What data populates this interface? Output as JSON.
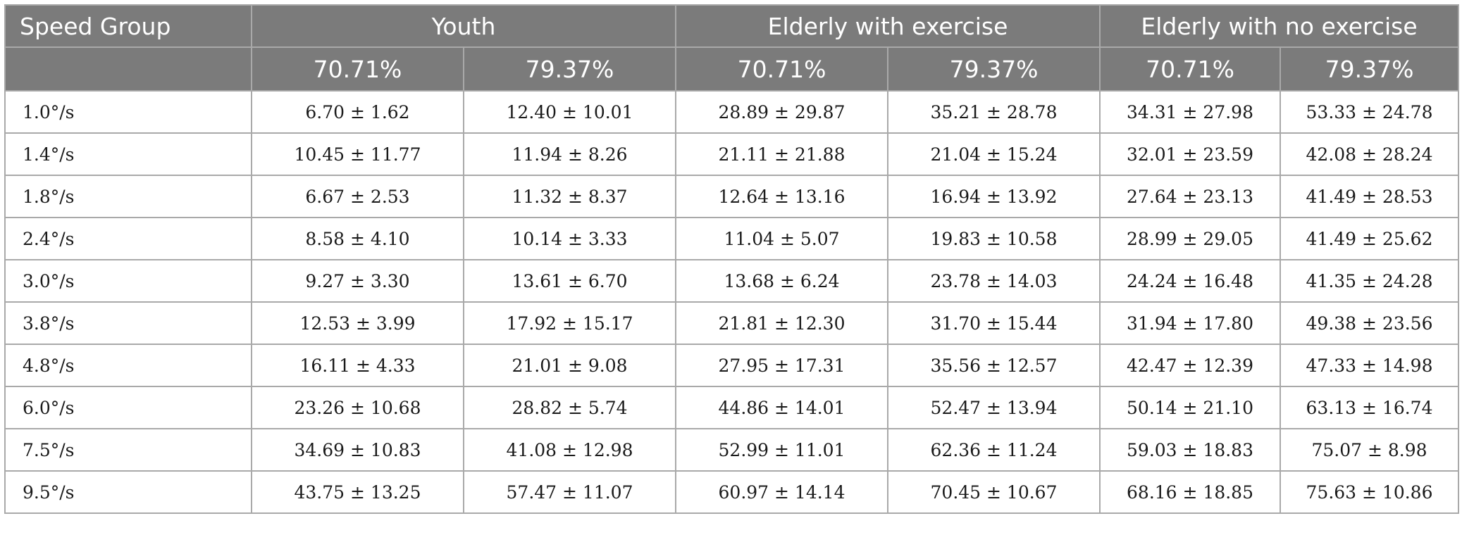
{
  "header": {
    "first_column": "Speed Group",
    "groups": [
      "Youth",
      "Elderly with exercise",
      "Elderly with no exercise"
    ],
    "thresholds": [
      "70.71%",
      "79.37%",
      "70.71%",
      "79.37%",
      "70.71%",
      "79.37%"
    ]
  },
  "rows": [
    {
      "speed": "1.0°/s",
      "values": [
        "6.70 ± 1.62",
        "12.40 ± 10.01",
        "28.89 ± 29.87",
        "35.21 ± 28.78",
        "34.31 ± 27.98",
        "53.33 ± 24.78"
      ]
    },
    {
      "speed": "1.4°/s",
      "values": [
        "10.45 ± 11.77",
        "11.94 ± 8.26",
        "21.11 ± 21.88",
        "21.04 ± 15.24",
        "32.01 ± 23.59",
        "42.08 ± 28.24"
      ]
    },
    {
      "speed": "1.8°/s",
      "values": [
        "6.67 ± 2.53",
        "11.32 ± 8.37",
        "12.64 ± 13.16",
        "16.94 ± 13.92",
        "27.64 ± 23.13",
        "41.49 ± 28.53"
      ]
    },
    {
      "speed": "2.4°/s",
      "values": [
        "8.58 ± 4.10",
        "10.14 ± 3.33",
        "11.04 ± 5.07",
        "19.83 ± 10.58",
        "28.99 ± 29.05",
        "41.49 ± 25.62"
      ]
    },
    {
      "speed": "3.0°/s",
      "values": [
        "9.27 ± 3.30",
        "13.61 ± 6.70",
        "13.68 ± 6.24",
        "23.78 ± 14.03",
        "24.24 ± 16.48",
        "41.35 ± 24.28"
      ]
    },
    {
      "speed": "3.8°/s",
      "values": [
        "12.53 ± 3.99",
        "17.92 ± 15.17",
        "21.81 ± 12.30",
        "31.70 ± 15.44",
        "31.94 ± 17.80",
        "49.38 ± 23.56"
      ]
    },
    {
      "speed": "4.8°/s",
      "values": [
        "16.11 ± 4.33",
        "21.01 ± 9.08",
        "27.95 ± 17.31",
        "35.56 ± 12.57",
        "42.47 ± 12.39",
        "47.33 ± 14.98"
      ]
    },
    {
      "speed": "6.0°/s",
      "values": [
        "23.26 ± 10.68",
        "28.82 ± 5.74",
        "44.86 ± 14.01",
        "52.47 ± 13.94",
        "50.14 ± 21.10",
        "63.13 ± 16.74"
      ]
    },
    {
      "speed": "7.5°/s",
      "values": [
        "34.69 ± 10.83",
        "41.08 ± 12.98",
        "52.99 ± 11.01",
        "62.36 ± 11.24",
        "59.03 ± 18.83",
        "75.07 ± 8.98"
      ]
    },
    {
      "speed": "9.5°/s",
      "values": [
        "43.75 ± 13.25",
        "57.47 ± 11.07",
        "60.97 ± 14.14",
        "70.45 ± 10.67",
        "68.16 ± 18.85",
        "75.63 ± 10.86"
      ]
    }
  ]
}
